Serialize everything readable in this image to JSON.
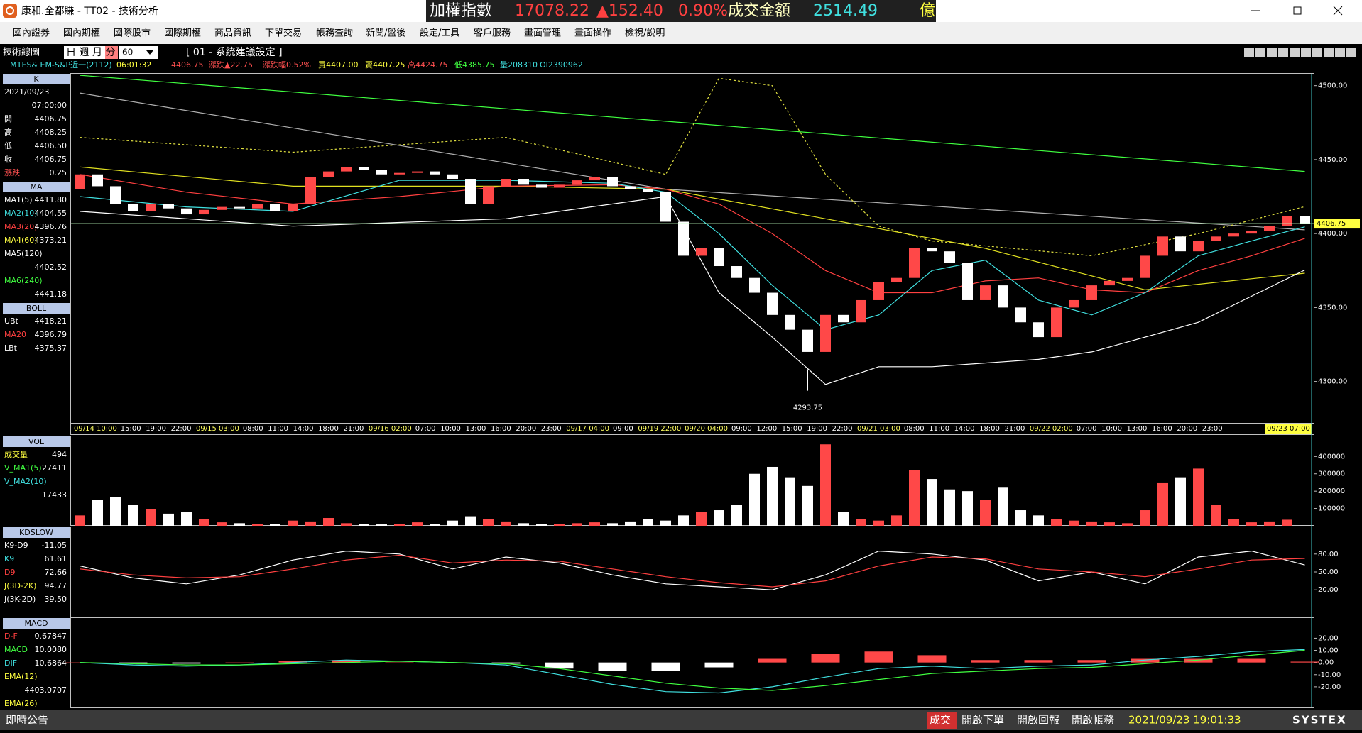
{
  "window": {
    "title": "康和.全都賺 - TT02 - 技術分析",
    "ticker": [
      "加權指數",
      "17078.22",
      "▲152.40",
      "0.90%",
      "成交金額",
      "2514.49",
      "億"
    ]
  },
  "menu": [
    "國內證券",
    "國內期權",
    "國際股市",
    "國際期權",
    "商品資訊",
    "下單交易",
    "帳務查詢",
    "新聞/盤後",
    "設定/工具",
    "客戶服務",
    "畫面管理",
    "畫面操作",
    "檢視/說明"
  ],
  "toolbar": {
    "title": "技術線圖",
    "periods": [
      "日",
      "週",
      "月",
      "分"
    ],
    "interval": "60",
    "setting": "[ 01 - 系統建議設定 ]"
  },
  "quote": [
    "M1ES&  EM-S&P近一(2112)",
    "06:01:32",
    "4406.75",
    "漲跌▲22.75",
    "漲跌幅0.52%",
    "買4407.00",
    "賣4407.25",
    "高4424.75",
    "低4385.75",
    "量208310",
    "OI2390962"
  ],
  "side_panels": [
    {
      "title": "K",
      "rows": [
        {
          "label": "2021/09/23"
        },
        {
          "value": "07:00:00"
        },
        {
          "label": "開",
          "value": "4406.75"
        },
        {
          "label": "高",
          "value": "4408.25"
        },
        {
          "label": "低",
          "value": "4406.50"
        },
        {
          "label": "收",
          "value": "4406.75"
        },
        {
          "label": "漲跌",
          "value": "0.25",
          "color": "#ff5050"
        }
      ]
    },
    {
      "title": "MA",
      "rows": [
        {
          "label": "MA1(5)",
          "value": "4411.80",
          "color": "#ffffff"
        },
        {
          "label": "MA2(10)",
          "value": "4404.55",
          "color": "#40e0e0"
        },
        {
          "label": "MA3(20)",
          "value": "4396.76",
          "color": "#ff4040"
        },
        {
          "label": "MA4(60)",
          "value": "4373.21",
          "color": "#ffff40"
        },
        {
          "label": "MA5(120)",
          "color": "#ffffff"
        },
        {
          "value": "4402.52"
        },
        {
          "label": "MA6(240)",
          "color": "#40ff40"
        },
        {
          "value": "4441.18"
        }
      ]
    },
    {
      "title": "BOLL",
      "rows": [
        {
          "label": "UBt",
          "value": "4418.21",
          "color": "#ffffff"
        },
        {
          "label": "MA20",
          "value": "4396.79",
          "color": "#ff4040"
        },
        {
          "label": "LBt",
          "value": "4375.37",
          "color": "#ffffff"
        }
      ]
    },
    {
      "title": "VOL",
      "rows": [
        {
          "label": "成交量",
          "value": "494",
          "color": "#ffff40"
        },
        {
          "label": "V_MA1(5)",
          "value": "27411",
          "color": "#40ff40"
        },
        {
          "label": "V_MA2(10)",
          "color": "#40e0e0"
        },
        {
          "value": "17433"
        }
      ]
    },
    {
      "title": "KDSLOW",
      "rows": [
        {
          "label": "K9-D9",
          "value": "-11.05",
          "color": "#ffffff"
        },
        {
          "label": "K9",
          "value": "61.61",
          "color": "#40e0e0"
        },
        {
          "label": "D9",
          "value": "72.66",
          "color": "#ff4040"
        },
        {
          "label": "J(3D-2K)",
          "value": "94.77",
          "color": "#ffff40"
        },
        {
          "label": "J(3K-2D)",
          "value": "39.50",
          "color": "#ffffff"
        }
      ]
    },
    {
      "title": "MACD",
      "rows": [
        {
          "label": "D-F",
          "value": "0.67847",
          "color": "#ff4040"
        },
        {
          "label": "MACD",
          "value": "10.0080",
          "color": "#40ff40"
        },
        {
          "label": "DIF",
          "value": "10.6864",
          "color": "#40e0e0"
        },
        {
          "label": "EMA(12)",
          "color": "#ffff40"
        },
        {
          "value": "4403.0707"
        },
        {
          "label": "EMA(26)",
          "color": "#ffff40"
        }
      ]
    }
  ],
  "chart_data": [
    {
      "type": "candlestick",
      "open": 4430,
      "close": [
        4440,
        4432,
        4420,
        4415,
        4420,
        4417,
        4413,
        4416,
        4418,
        4417,
        4420,
        4415,
        4420,
        4438,
        4442,
        4445,
        4443,
        4440,
        4441,
        4442,
        4440,
        4437,
        4420,
        4432,
        4437,
        4433,
        4431,
        4433,
        4436,
        4438,
        4432,
        4430,
        4428,
        4408,
        4385,
        4390,
        4378,
        4370,
        4360,
        4345,
        4335,
        4320,
        4345,
        4340,
        4355,
        4367,
        4370,
        4390,
        4388,
        4380,
        4355,
        4365,
        4350,
        4340,
        4330,
        4350,
        4355,
        4365,
        4368,
        4370,
        4385,
        4398,
        4388,
        4395,
        4398,
        4400,
        4402,
        4405,
        4412,
        4406.75
      ],
      "last": 4406.75,
      "low_mark": {
        "x": 41,
        "value": 4293.75
      },
      "ylim": [
        4272,
        4508
      ],
      "yticks": [
        {
          "value": 4300,
          "label": "4300.00"
        },
        {
          "value": 4350,
          "label": "4350.00"
        },
        {
          "value": 4400,
          "label": "4400.00"
        },
        {
          "value": 4450,
          "label": "4450.00"
        },
        {
          "value": 4500,
          "label": "4500.00"
        }
      ],
      "x_labels": [
        "09/14 10:00",
        "15:00",
        "19:00",
        "22:00",
        "09/15 03:00",
        "08:00",
        "11:00",
        "14:00",
        "18:00",
        "21:00",
        "09/16 02:00",
        "07:00",
        "10:00",
        "13:00",
        "16:00",
        "20:00",
        "23:00",
        "09/17 04:00",
        "09:00",
        "09/19 22:00",
        "09/20 04:00",
        "09:00",
        "12:00",
        "15:00",
        "19:00",
        "22:00",
        "09/21 03:00",
        "08:00",
        "11:00",
        "14:00",
        "18:00",
        "21:00",
        "09/22 02:00",
        "07:00",
        "10:00",
        "13:00",
        "16:00",
        "20:00",
        "23:00",
        "09/23 07:00"
      ],
      "overlays": [
        {
          "color": "#40ff40",
          "x": [
            0,
            69
          ],
          "values": [
            4507,
            4442
          ]
        },
        {
          "color": "#b0b0b0",
          "x": [
            0,
            33,
            69
          ],
          "values": [
            4495,
            4430,
            4402.52
          ]
        },
        {
          "color": "#e0e020",
          "x": [
            0,
            12,
            24,
            33,
            42,
            51,
            60,
            69
          ],
          "values": [
            4445,
            4432,
            4432,
            4430,
            4410,
            4390,
            4362,
            4373.21
          ]
        },
        {
          "color": "#ff4040",
          "x": [
            0,
            6,
            12,
            18,
            24,
            30,
            33,
            36,
            39,
            42,
            45,
            48,
            51,
            54,
            57,
            60,
            63,
            66,
            69
          ],
          "values": [
            4440,
            4428,
            4420,
            4425,
            4432,
            4433,
            4430,
            4420,
            4400,
            4375,
            4360,
            4360,
            4368,
            4370,
            4362,
            4360,
            4375,
            4385,
            4396.76
          ]
        },
        {
          "color": "#40e0e0",
          "x": [
            0,
            6,
            12,
            18,
            24,
            30,
            33,
            36,
            39,
            42,
            45,
            48,
            51,
            54,
            57,
            60,
            63,
            66,
            69
          ],
          "values": [
            4425,
            4418,
            4415,
            4436,
            4436,
            4434,
            4428,
            4400,
            4365,
            4335,
            4345,
            4375,
            4382,
            4355,
            4345,
            4360,
            4385,
            4395,
            4404.55
          ]
        },
        {
          "color": "#e0e040",
          "dash": true,
          "x": [
            0,
            12,
            24,
            33,
            36,
            39,
            42,
            45,
            48,
            57,
            63,
            69
          ],
          "values": [
            4465,
            4455,
            4465,
            4440,
            4505,
            4500,
            4440,
            4405,
            4395,
            4385,
            4400,
            4418.21
          ]
        },
        {
          "color": "#ffffff",
          "x": [
            0,
            12,
            24,
            33,
            36,
            39,
            42,
            45,
            48,
            54,
            57,
            63,
            69
          ],
          "values": [
            4415,
            4405,
            4410,
            4425,
            4360,
            4330,
            4298,
            4310,
            4310,
            4315,
            4320,
            4340,
            4375.37
          ]
        }
      ]
    },
    {
      "type": "bar",
      "values": [
        60000,
        150000,
        165000,
        120000,
        95000,
        70000,
        80000,
        40000,
        20000,
        15000,
        10000,
        12000,
        30000,
        25000,
        45000,
        15000,
        10000,
        8000,
        10000,
        20000,
        12000,
        30000,
        55000,
        40000,
        25000,
        15000,
        10000,
        12000,
        15000,
        20000,
        15000,
        25000,
        40000,
        30000,
        60000,
        80000,
        90000,
        120000,
        300000,
        340000,
        280000,
        230000,
        470000,
        80000,
        40000,
        30000,
        60000,
        320000,
        270000,
        210000,
        200000,
        150000,
        220000,
        90000,
        60000,
        40000,
        30000,
        25000,
        20000,
        15000,
        90000,
        250000,
        280000,
        330000,
        120000,
        40000,
        20000,
        25000,
        35000,
        494
      ],
      "ylim": [
        0,
        516000
      ],
      "yticks": [
        100000,
        200000,
        300000,
        400000
      ]
    },
    {
      "type": "line",
      "x": [
        0,
        3,
        6,
        9,
        12,
        15,
        18,
        21,
        24,
        27,
        30,
        33,
        36,
        39,
        42,
        45,
        48,
        51,
        54,
        57,
        60,
        63,
        66,
        69
      ],
      "series": [
        {
          "color": "#ffffff",
          "values": [
            60,
            40,
            30,
            45,
            70,
            85,
            80,
            55,
            75,
            65,
            45,
            30,
            25,
            20,
            45,
            85,
            80,
            70,
            35,
            50,
            30,
            75,
            85,
            61.61
          ]
        },
        {
          "color": "#ff4040",
          "values": [
            55,
            45,
            40,
            42,
            55,
            70,
            78,
            65,
            70,
            68,
            55,
            42,
            32,
            25,
            35,
            60,
            75,
            72,
            55,
            50,
            42,
            55,
            70,
            72.66
          ]
        }
      ],
      "ylim": [
        -25,
        125
      ],
      "yticks": [
        {
          "value": 20,
          "label": "20.00"
        },
        {
          "value": 50,
          "label": "50.00"
        },
        {
          "value": 80,
          "label": "80.00"
        }
      ]
    },
    {
      "type": "macd",
      "x": [
        0,
        3,
        6,
        9,
        12,
        15,
        18,
        21,
        24,
        27,
        30,
        33,
        36,
        39,
        42,
        45,
        48,
        51,
        54,
        57,
        60,
        63,
        66,
        69
      ],
      "bars": [
        0,
        -1,
        -1,
        0,
        1,
        2,
        0,
        0,
        -1,
        -5,
        -7,
        -7,
        -4,
        3,
        7,
        9,
        6,
        2,
        2,
        2,
        3,
        3,
        3,
        0.67847
      ],
      "series": [
        {
          "color": "#40e0e0",
          "values": [
            0,
            -2,
            -3,
            -2,
            0,
            2,
            1,
            0,
            -2,
            -10,
            -18,
            -24,
            -25,
            -20,
            -12,
            -5,
            -3,
            -5,
            -3,
            -2,
            2,
            5,
            9,
            10.6864
          ]
        },
        {
          "color": "#40ff40",
          "values": [
            0,
            -1,
            -2,
            -2,
            -1,
            0,
            1,
            0,
            -1,
            -5,
            -11,
            -17,
            -21,
            -23,
            -19,
            -14,
            -9,
            -7,
            -5,
            -4,
            -1,
            2,
            6,
            10.008
          ]
        }
      ],
      "ylim": [
        -37,
        36.6
      ],
      "yticks": [
        {
          "value": -20,
          "label": "-20.00"
        },
        {
          "value": -10,
          "label": "-10.00"
        },
        {
          "value": 0,
          "label": "0.00"
        },
        {
          "value": 10,
          "label": "10.00"
        },
        {
          "value": 20,
          "label": "20.00"
        }
      ]
    }
  ],
  "status": {
    "notice": "即時公告",
    "buttons": [
      "成交",
      "開啟下單",
      "開啟回報",
      "開啟帳務"
    ],
    "time": "2021/09/23 19:01:33",
    "brand": "SYSTEX"
  }
}
